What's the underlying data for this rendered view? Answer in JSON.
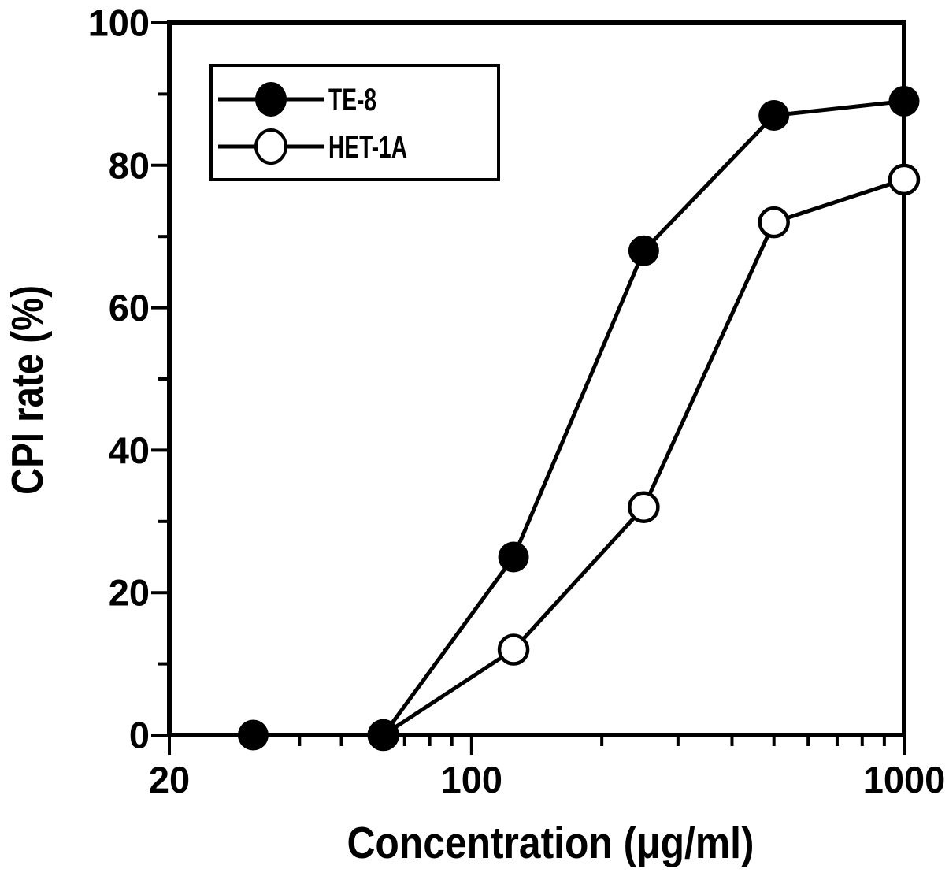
{
  "figure": {
    "background_color": "#ffffff",
    "ink_color": "#000000"
  },
  "chart_data": {
    "type": "line",
    "title": "",
    "xlabel": "Concentration (μg/ml)",
    "ylabel": "CPI rate (%)",
    "x_scale": "log",
    "y_scale": "linear",
    "xlim": [
      20,
      1000
    ],
    "ylim": [
      0,
      100
    ],
    "grid": false,
    "legend_position": "upper-left-inside",
    "x_major_ticks": {
      "values": [
        20,
        100,
        1000
      ],
      "labels": [
        "20",
        "100",
        "1000"
      ]
    },
    "x_minor_ticks": [
      30,
      40,
      50,
      60,
      70,
      80,
      90,
      200,
      300,
      400,
      500,
      600,
      700,
      800,
      900
    ],
    "y_major_ticks": {
      "values": [
        0,
        20,
        40,
        60,
        80,
        100
      ],
      "labels": [
        "0",
        "20",
        "40",
        "60",
        "80",
        "100"
      ]
    },
    "y_minor_ticks": [
      10,
      30,
      50,
      70,
      90
    ],
    "series": [
      {
        "name": "TE-8",
        "marker": "filled-circle",
        "color": "#000000",
        "points": [
          {
            "x": 31.25,
            "y": 0
          },
          {
            "x": 62.5,
            "y": 0
          },
          {
            "x": 125,
            "y": 25
          },
          {
            "x": 250,
            "y": 68
          },
          {
            "x": 500,
            "y": 87
          },
          {
            "x": 1000,
            "y": 89
          }
        ]
      },
      {
        "name": "HET-1A",
        "marker": "open-circle",
        "color": "#000000",
        "points": [
          {
            "x": 62.5,
            "y": 0
          },
          {
            "x": 125,
            "y": 12
          },
          {
            "x": 250,
            "y": 32
          },
          {
            "x": 500,
            "y": 72
          },
          {
            "x": 1000,
            "y": 78
          }
        ]
      }
    ]
  }
}
